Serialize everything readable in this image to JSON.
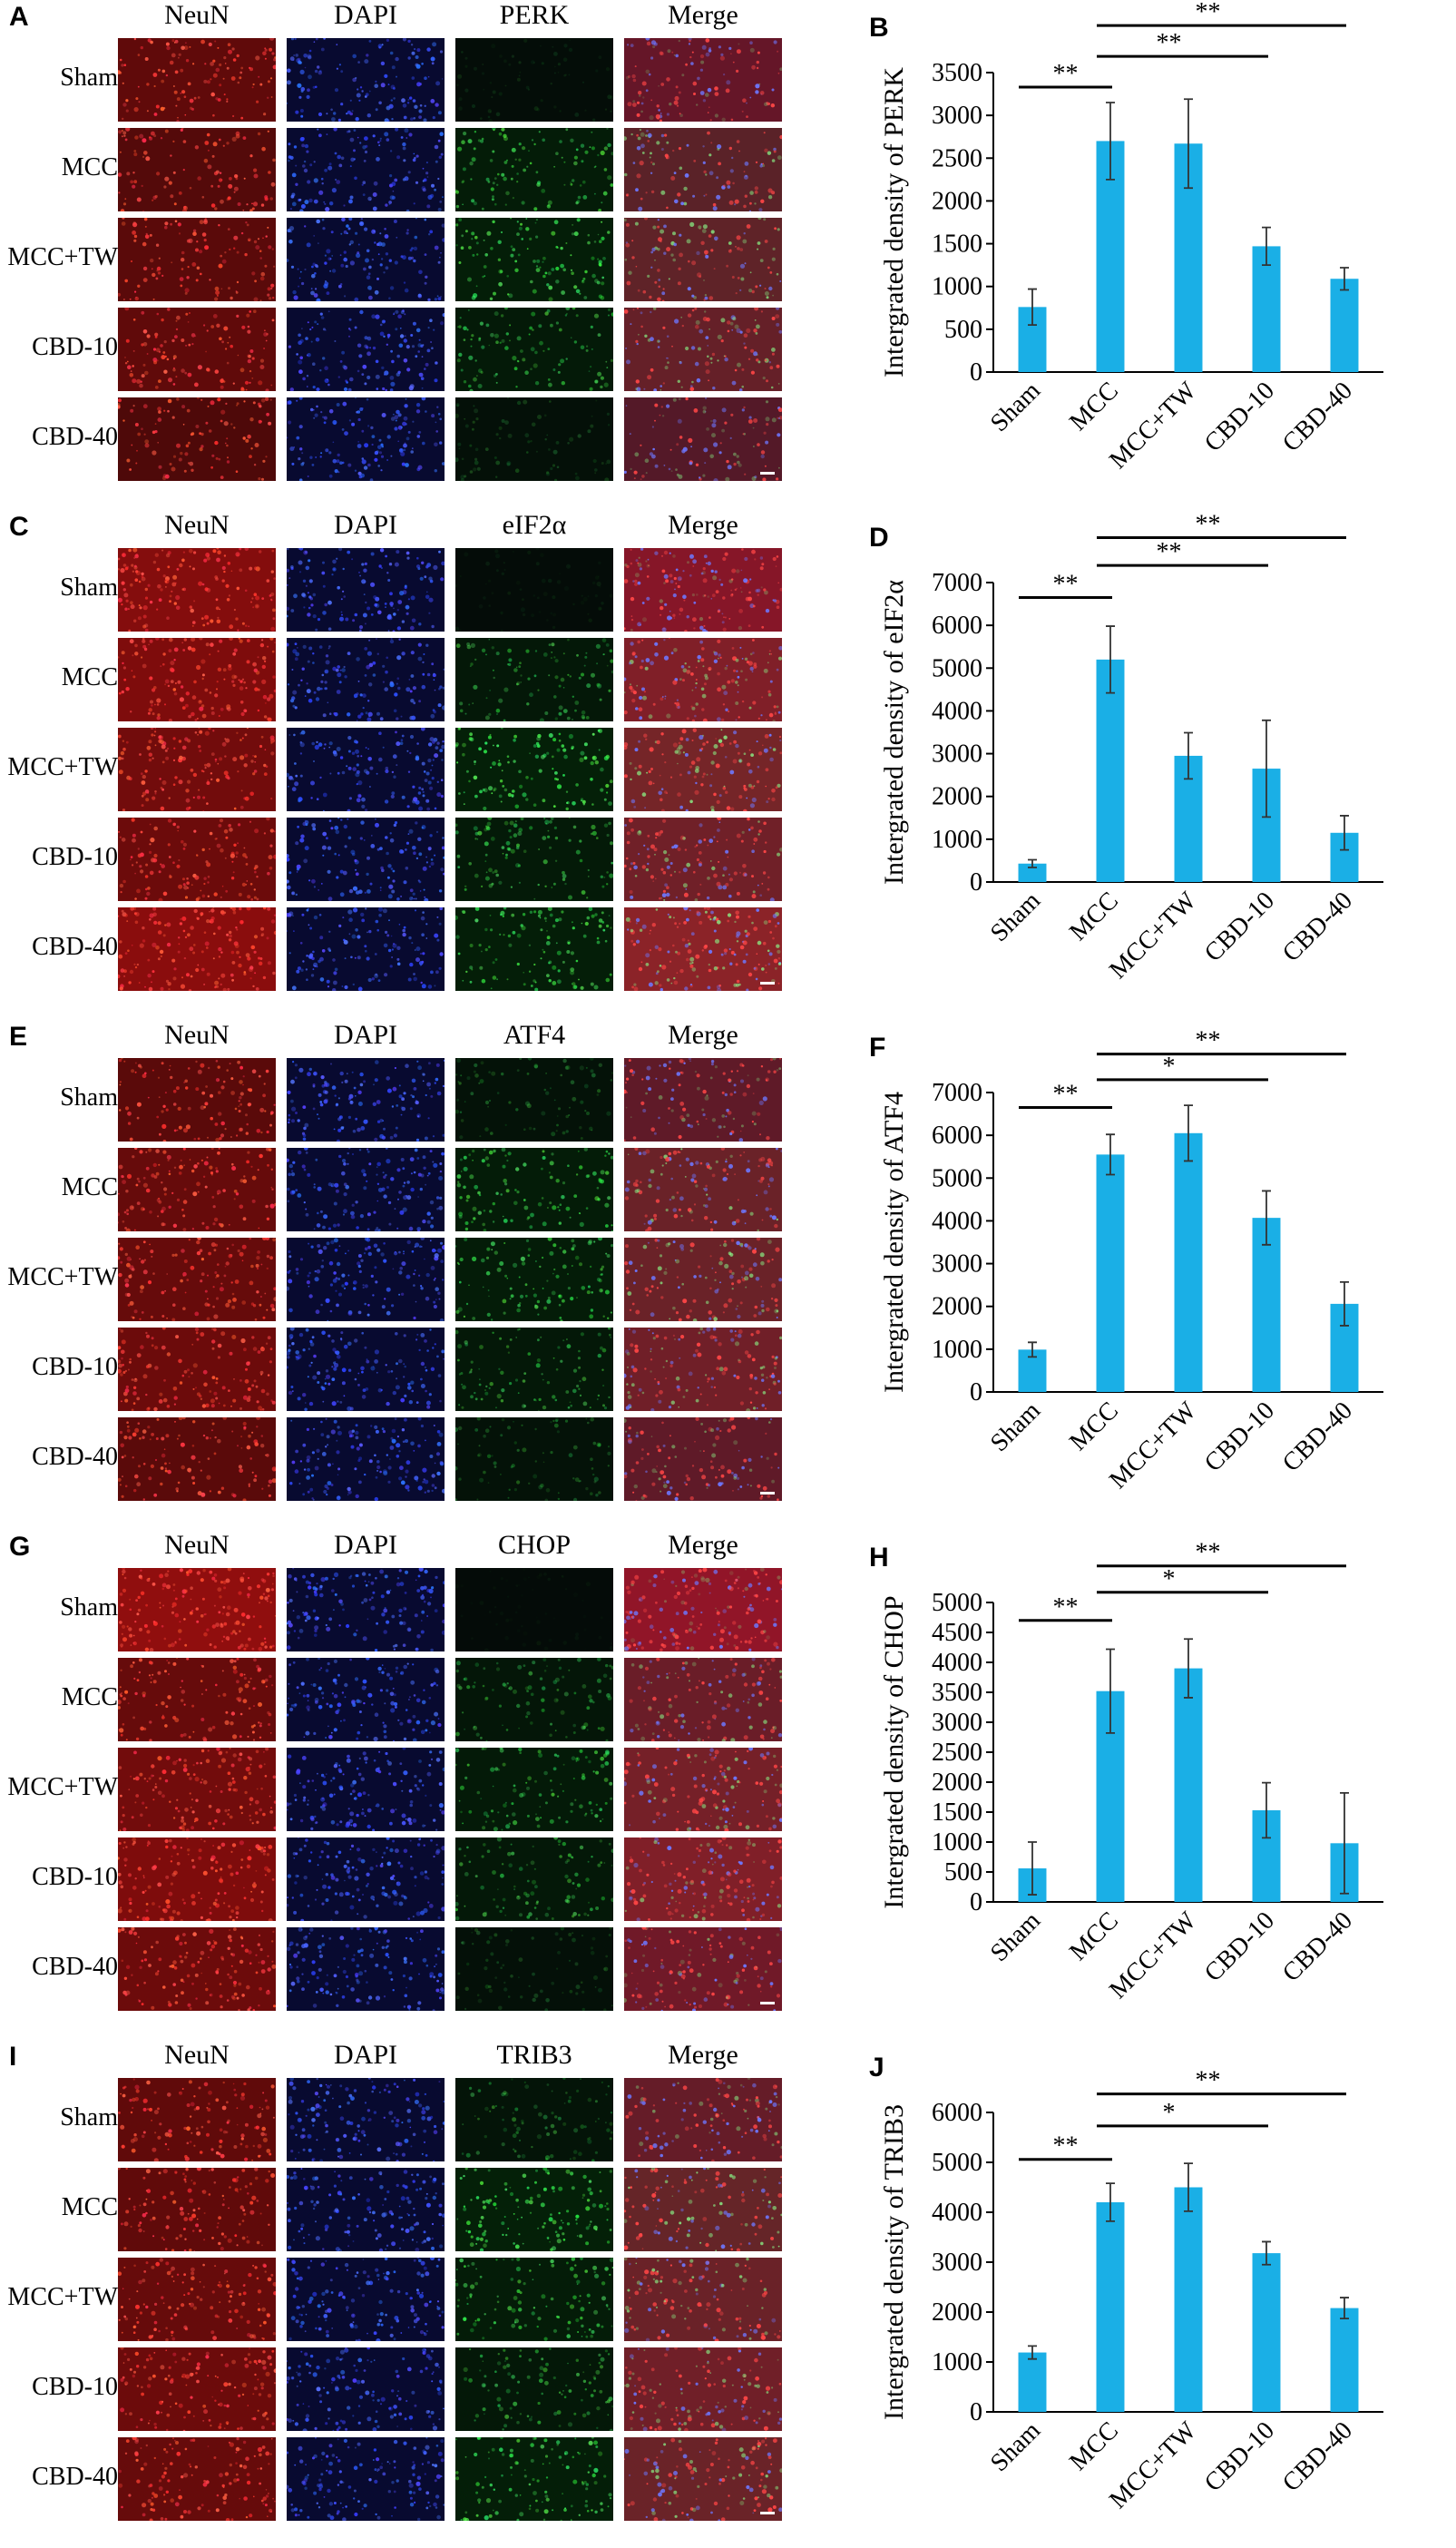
{
  "micrograph_columns": [
    "NeuN",
    "DAPI",
    "PERK",
    "Merge"
  ],
  "groups": [
    "Sham",
    "MCC",
    "MCC+TW",
    "CBD-10",
    "CBD-40"
  ],
  "colors": {
    "bar": "#1aafe6",
    "neun": "#d81e1e",
    "dapi": "#1f3bd6",
    "green": "#1fb43a"
  },
  "panels": [
    {
      "image_letter": "A",
      "chart_letter": "B",
      "headers": [
        "NeuN",
        "DAPI",
        "PERK",
        "Merge"
      ],
      "rows": [
        "Sham",
        "MCC",
        "MCC+TW",
        "CBD-10",
        "CBD-40"
      ],
      "green_intensity": [
        0.08,
        0.45,
        0.5,
        0.4,
        0.15
      ],
      "red_intensity": [
        0.55,
        0.45,
        0.5,
        0.55,
        0.4
      ]
    },
    {
      "image_letter": "C",
      "chart_letter": "D",
      "headers": [
        "NeuN",
        "DAPI",
        "eIF2α",
        "Merge"
      ],
      "rows": [
        "Sham",
        "MCC",
        "MCC+TW",
        "CBD-10",
        "CBD-40"
      ],
      "green_intensity": [
        0.05,
        0.35,
        0.55,
        0.4,
        0.5
      ],
      "red_intensity": [
        0.85,
        0.8,
        0.7,
        0.65,
        0.9
      ]
    },
    {
      "image_letter": "E",
      "chart_letter": "F",
      "headers": [
        "NeuN",
        "DAPI",
        "ATF4",
        "Merge"
      ],
      "rows": [
        "Sham",
        "MCC",
        "MCC+TW",
        "CBD-10",
        "CBD-40"
      ],
      "green_intensity": [
        0.2,
        0.45,
        0.45,
        0.35,
        0.2
      ],
      "red_intensity": [
        0.5,
        0.6,
        0.6,
        0.65,
        0.5
      ]
    },
    {
      "image_letter": "G",
      "chart_letter": "H",
      "headers": [
        "NeuN",
        "DAPI",
        "CHOP",
        "Merge"
      ],
      "rows": [
        "Sham",
        "MCC",
        "MCC+TW",
        "CBD-10",
        "CBD-40"
      ],
      "green_intensity": [
        0.03,
        0.3,
        0.4,
        0.35,
        0.15
      ],
      "red_intensity": [
        0.95,
        0.6,
        0.7,
        0.8,
        0.65
      ]
    },
    {
      "image_letter": "I",
      "chart_letter": "J",
      "headers": [
        "NeuN",
        "DAPI",
        "TRIB3",
        "Merge"
      ],
      "rows": [
        "Sham",
        "MCC",
        "MCC+TW",
        "CBD-10",
        "CBD-40"
      ],
      "green_intensity": [
        0.25,
        0.55,
        0.45,
        0.35,
        0.5
      ],
      "red_intensity": [
        0.55,
        0.55,
        0.6,
        0.65,
        0.6
      ]
    }
  ],
  "chart_data": [
    {
      "type": "bar",
      "title": "",
      "xlabel": "",
      "ylabel": "Intergrated density of PERK",
      "categories": [
        "Sham",
        "MCC",
        "MCC+TW",
        "CBD-10",
        "CBD-40"
      ],
      "values": [
        760,
        2700,
        2670,
        1470,
        1090
      ],
      "errors": [
        210,
        450,
        520,
        220,
        130
      ],
      "yticks": [
        0,
        500,
        1000,
        1500,
        2000,
        2500,
        3000,
        3500
      ],
      "ylim": [
        0,
        3500
      ],
      "significance": [
        {
          "from": 0,
          "to": 1,
          "label": "**",
          "y": 3330
        },
        {
          "from": 1,
          "to": 3,
          "label": "**",
          "y": 3690
        },
        {
          "from": 1,
          "to": 4,
          "label": "**",
          "y": 4050
        }
      ]
    },
    {
      "type": "bar",
      "title": "",
      "xlabel": "",
      "ylabel": "Intergrated density of eIF2α",
      "categories": [
        "Sham",
        "MCC",
        "MCC+TW",
        "CBD-10",
        "CBD-40"
      ],
      "values": [
        430,
        5200,
        2950,
        2650,
        1150
      ],
      "errors": [
        90,
        780,
        540,
        1130,
        400
      ],
      "yticks": [
        0,
        1000,
        2000,
        3000,
        4000,
        5000,
        6000,
        7000
      ],
      "ylim": [
        0,
        7000
      ],
      "significance": [
        {
          "from": 0,
          "to": 1,
          "label": "**",
          "y": 6650
        },
        {
          "from": 1,
          "to": 3,
          "label": "**",
          "y": 7400
        },
        {
          "from": 1,
          "to": 4,
          "label": "**",
          "y": 8050
        }
      ]
    },
    {
      "type": "bar",
      "title": "",
      "xlabel": "",
      "ylabel": "Intergrated density of ATF4",
      "categories": [
        "Sham",
        "MCC",
        "MCC+TW",
        "CBD-10",
        "CBD-40"
      ],
      "values": [
        990,
        5550,
        6050,
        4070,
        2060
      ],
      "errors": [
        170,
        470,
        650,
        630,
        510
      ],
      "yticks": [
        0,
        1000,
        2000,
        3000,
        4000,
        5000,
        6000,
        7000
      ],
      "ylim": [
        0,
        7000
      ],
      "significance": [
        {
          "from": 0,
          "to": 1,
          "label": "**",
          "y": 6650
        },
        {
          "from": 1,
          "to": 3,
          "label": "*",
          "y": 7300
        },
        {
          "from": 1,
          "to": 4,
          "label": "**",
          "y": 7900
        }
      ]
    },
    {
      "type": "bar",
      "title": "",
      "xlabel": "",
      "ylabel": "Intergrated density of CHOP",
      "categories": [
        "Sham",
        "MCC",
        "MCC+TW",
        "CBD-10",
        "CBD-40"
      ],
      "values": [
        560,
        3520,
        3900,
        1530,
        980
      ],
      "errors": [
        440,
        700,
        490,
        460,
        840
      ],
      "yticks": [
        0,
        500,
        1000,
        1500,
        2000,
        2500,
        3000,
        3500,
        4000,
        4500,
        5000
      ],
      "ylim": [
        0,
        5000
      ],
      "significance": [
        {
          "from": 0,
          "to": 1,
          "label": "**",
          "y": 4700
        },
        {
          "from": 1,
          "to": 3,
          "label": "*",
          "y": 5170
        },
        {
          "from": 1,
          "to": 4,
          "label": "**",
          "y": 5610
        }
      ]
    },
    {
      "type": "bar",
      "title": "",
      "xlabel": "",
      "ylabel": "Intergrated density of TRIB3",
      "categories": [
        "Sham",
        "MCC",
        "MCC+TW",
        "CBD-10",
        "CBD-40"
      ],
      "values": [
        1190,
        4200,
        4500,
        3180,
        2080
      ],
      "errors": [
        130,
        380,
        480,
        230,
        210
      ],
      "yticks": [
        0,
        1000,
        2000,
        3000,
        4000,
        5000,
        6000
      ],
      "ylim": [
        0,
        6000
      ],
      "significance": [
        {
          "from": 0,
          "to": 1,
          "label": "**",
          "y": 5060
        },
        {
          "from": 1,
          "to": 3,
          "label": "*",
          "y": 5730
        },
        {
          "from": 1,
          "to": 4,
          "label": "**",
          "y": 6370
        }
      ]
    }
  ]
}
